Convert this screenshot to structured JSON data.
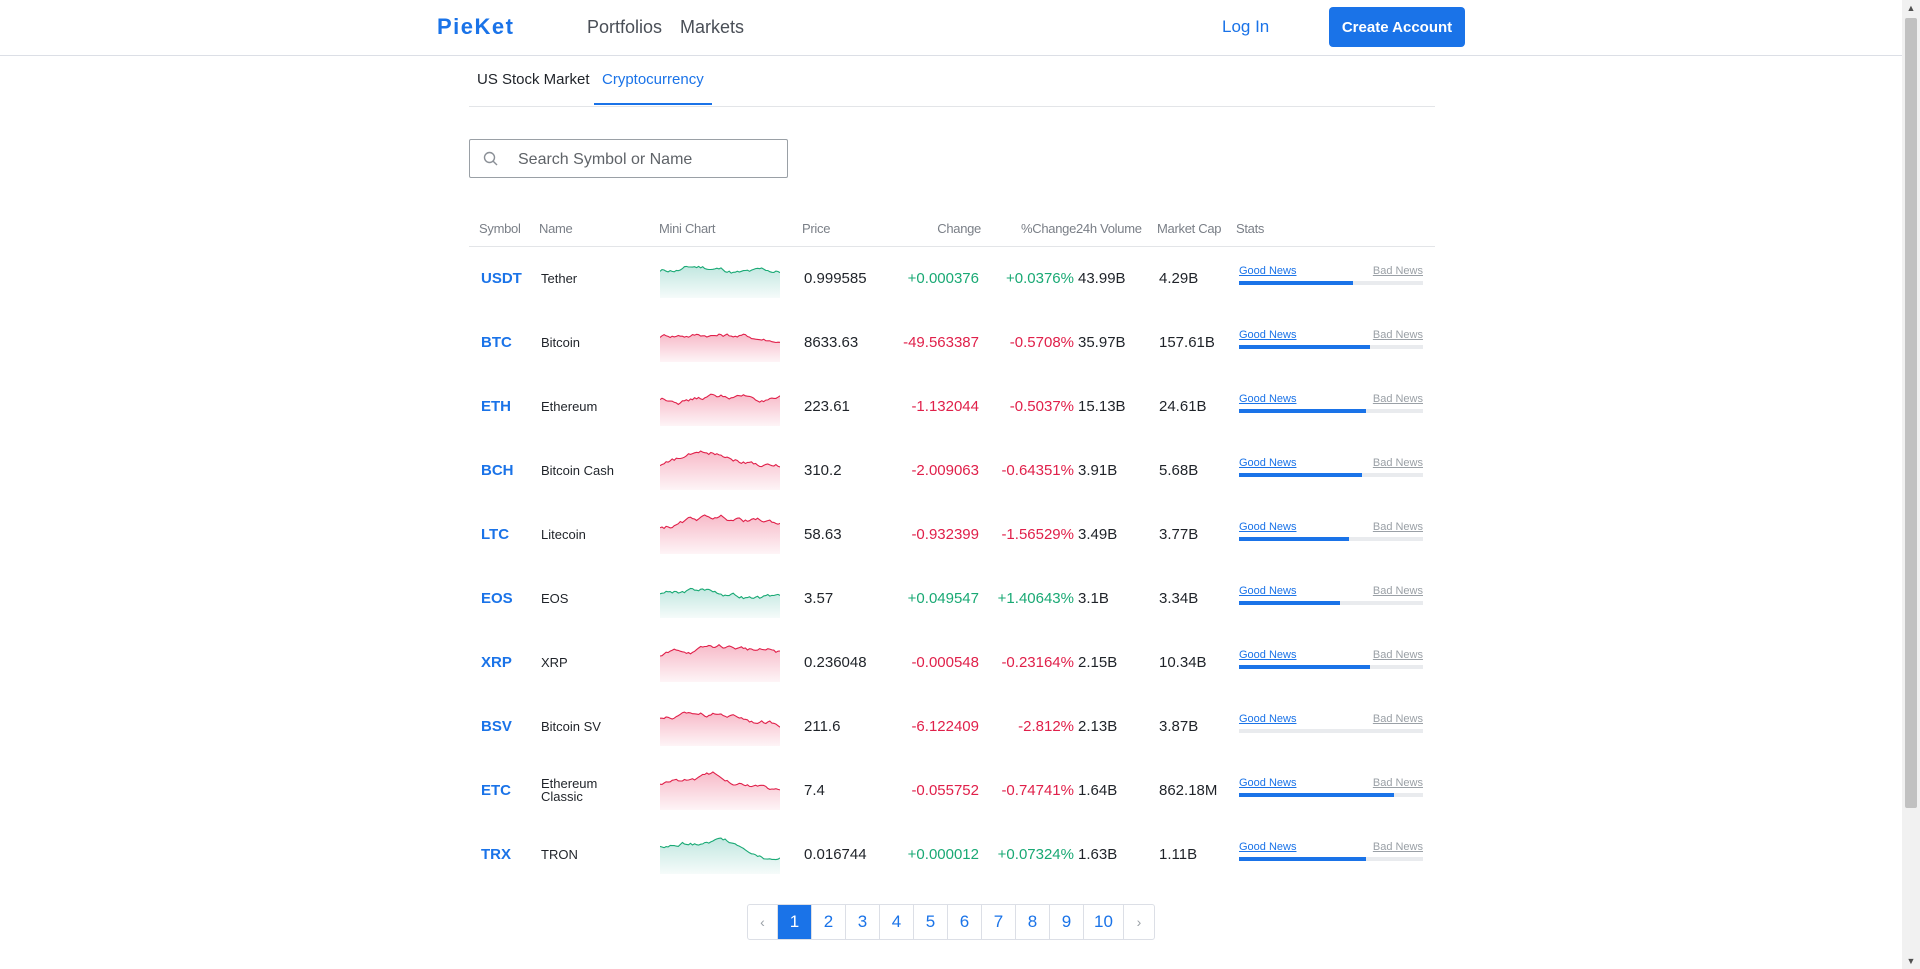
{
  "header": {
    "logo": "PieKet",
    "nav": [
      "Portfolios",
      "Markets"
    ],
    "login_label": "Log In",
    "create_account_label": "Create Account"
  },
  "tabs": [
    {
      "label": "US Stock Market",
      "active": false
    },
    {
      "label": "Cryptocurrency",
      "active": true
    }
  ],
  "search": {
    "placeholder": "Search Symbol or Name",
    "value": ""
  },
  "table": {
    "columns": {
      "symbol": "Symbol",
      "name": "Name",
      "mini_chart": "Mini Chart",
      "price": "Price",
      "change": "Change",
      "pct_change": "%Change",
      "volume": "24h Volume",
      "market_cap": "Market Cap",
      "stats": "Stats"
    },
    "stats_good_label": "Good News",
    "stats_bad_label": "Bad News",
    "rows": [
      {
        "symbol": "USDT",
        "name": "Tether",
        "price": "0.999585",
        "change": "+0.000376",
        "pct_change": "+0.0376%",
        "volume": "43.99B",
        "market_cap": "4.29B",
        "trend": "up",
        "good_news_share": 0.62
      },
      {
        "symbol": "BTC",
        "name": "Bitcoin",
        "price": "8633.63",
        "change": "-49.563387",
        "pct_change": "-0.5708%",
        "volume": "35.97B",
        "market_cap": "157.61B",
        "trend": "down",
        "good_news_share": 0.71
      },
      {
        "symbol": "ETH",
        "name": "Ethereum",
        "price": "223.61",
        "change": "-1.132044",
        "pct_change": "-0.5037%",
        "volume": "15.13B",
        "market_cap": "24.61B",
        "trend": "down",
        "good_news_share": 0.69
      },
      {
        "symbol": "BCH",
        "name": "Bitcoin Cash",
        "price": "310.2",
        "change": "-2.009063",
        "pct_change": "-0.64351%",
        "volume": "3.91B",
        "market_cap": "5.68B",
        "trend": "down",
        "good_news_share": 0.67
      },
      {
        "symbol": "LTC",
        "name": "Litecoin",
        "price": "58.63",
        "change": "-0.932399",
        "pct_change": "-1.56529%",
        "volume": "3.49B",
        "market_cap": "3.77B",
        "trend": "down",
        "good_news_share": 0.6
      },
      {
        "symbol": "EOS",
        "name": "EOS",
        "price": "3.57",
        "change": "+0.049547",
        "pct_change": "+1.40643%",
        "volume": "3.1B",
        "market_cap": "3.34B",
        "trend": "up",
        "good_news_share": 0.55
      },
      {
        "symbol": "XRP",
        "name": "XRP",
        "price": "0.236048",
        "change": "-0.000548",
        "pct_change": "-0.23164%",
        "volume": "2.15B",
        "market_cap": "10.34B",
        "trend": "down",
        "good_news_share": 0.71
      },
      {
        "symbol": "BSV",
        "name": "Bitcoin SV",
        "price": "211.6",
        "change": "-6.122409",
        "pct_change": "-2.812%",
        "volume": "2.13B",
        "market_cap": "3.87B",
        "trend": "down",
        "good_news_share": 0.0
      },
      {
        "symbol": "ETC",
        "name": "Ethereum Classic",
        "price": "7.4",
        "change": "-0.055752",
        "pct_change": "-0.74741%",
        "volume": "1.64B",
        "market_cap": "862.18M",
        "trend": "down",
        "good_news_share": 0.84
      },
      {
        "symbol": "TRX",
        "name": "TRON",
        "price": "0.016744",
        "change": "+0.000012",
        "pct_change": "+0.07324%",
        "volume": "1.63B",
        "market_cap": "1.11B",
        "trend": "up",
        "good_news_share": 0.69
      }
    ]
  },
  "pagination": {
    "prev_label": "‹",
    "next_label": "›",
    "pages": [
      "1",
      "2",
      "3",
      "4",
      "5",
      "6",
      "7",
      "8",
      "9",
      "10"
    ],
    "current": "1"
  },
  "colors": {
    "accent": "#1a73e8",
    "up": "#19a974",
    "down": "#e0204a",
    "up_fill": "#bfe6df",
    "down_fill": "#f7b7c6"
  }
}
